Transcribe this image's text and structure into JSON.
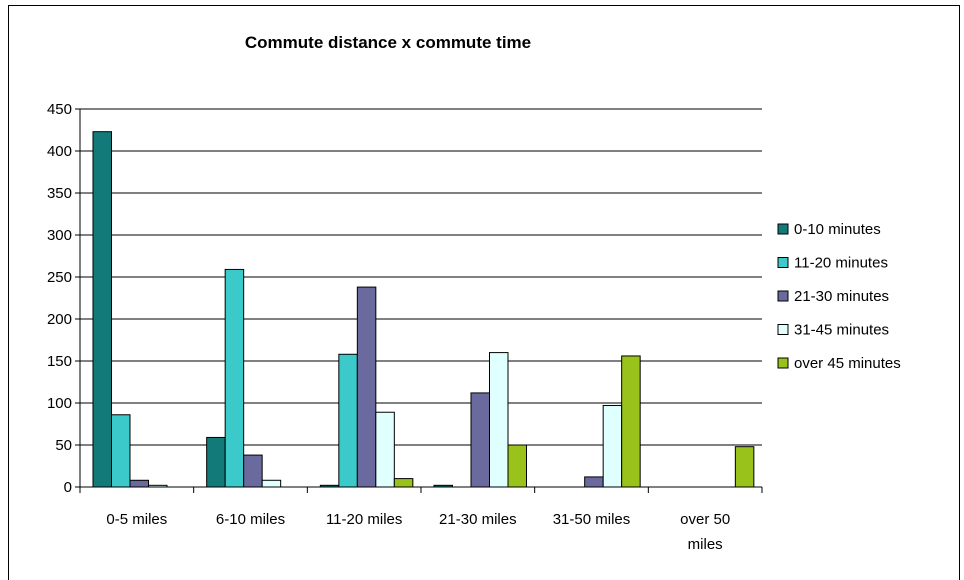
{
  "chart_data": {
    "type": "bar",
    "title": "Commute distance x commute time",
    "xlabel": "",
    "ylabel": "",
    "ylim": [
      0,
      450
    ],
    "yticks": [
      0,
      50,
      100,
      150,
      200,
      250,
      300,
      350,
      400,
      450
    ],
    "categories": [
      [
        "0-5 miles"
      ],
      [
        "6-10 miles"
      ],
      [
        "11-20 miles"
      ],
      [
        "21-30 miles"
      ],
      [
        "31-50 miles"
      ],
      [
        "over 50",
        "miles"
      ]
    ],
    "series": [
      {
        "name": "0-10 minutes",
        "color": "#137A7A",
        "values": [
          423,
          59,
          2,
          2,
          0,
          0
        ]
      },
      {
        "name": "11-20 minutes",
        "color": "#3CC9C9",
        "values": [
          86,
          259,
          158,
          0,
          0,
          0
        ]
      },
      {
        "name": "21-30 minutes",
        "color": "#6A6A9F",
        "values": [
          8,
          38,
          238,
          112,
          12,
          0
        ]
      },
      {
        "name": "31-45 minutes",
        "color": "#E0FFFF",
        "values": [
          2,
          8,
          89,
          160,
          97,
          0
        ]
      },
      {
        "name": "over 45 minutes",
        "color": "#99C31A",
        "values": [
          0,
          0,
          10,
          50,
          156,
          48
        ]
      }
    ],
    "grid": true,
    "legend_position": "right"
  }
}
